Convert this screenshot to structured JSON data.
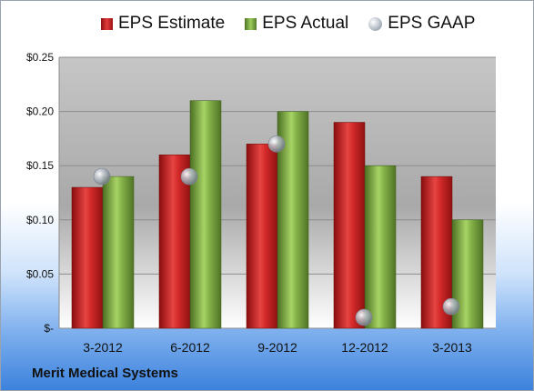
{
  "legend": {
    "estimate_label": "EPS Estimate",
    "actual_label": "EPS Actual",
    "gaap_label": "EPS GAAP"
  },
  "footer": {
    "company": "Merit Medical Systems"
  },
  "colors": {
    "estimate": "#d42a2a",
    "actual": "#86b54a",
    "gaap": "#b9c1ca",
    "plot_bg_top": "#c6c6c6",
    "plot_bg_bottom": "#ffffff"
  },
  "chart_data": {
    "type": "bar",
    "title": "",
    "xlabel": "",
    "ylabel": "",
    "categories": [
      "3-2012",
      "6-2012",
      "9-2012",
      "12-2012",
      "3-2013"
    ],
    "series": [
      {
        "name": "EPS Estimate",
        "type": "bar",
        "values": [
          0.13,
          0.16,
          0.17,
          0.19,
          0.14
        ]
      },
      {
        "name": "EPS Actual",
        "type": "bar",
        "values": [
          0.14,
          0.21,
          0.2,
          0.15,
          0.1
        ]
      },
      {
        "name": "EPS GAAP",
        "type": "scatter",
        "values": [
          0.14,
          0.14,
          0.17,
          0.01,
          0.02
        ]
      }
    ],
    "ylim": [
      0,
      0.25
    ],
    "yticks": [
      0,
      0.05,
      0.1,
      0.15,
      0.2,
      0.25
    ],
    "ytick_labels": [
      "$-",
      "$0.05",
      "$0.10",
      "$0.15",
      "$0.20",
      "$0.25"
    ],
    "grid": true,
    "legend_position": "top"
  }
}
